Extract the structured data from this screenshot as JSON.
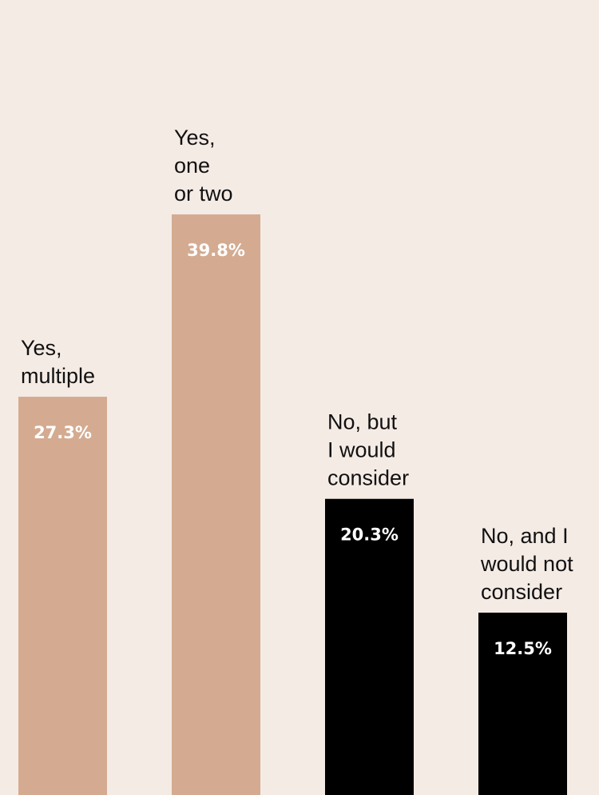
{
  "chart_data": {
    "type": "bar",
    "categories": [
      [
        "Yes,",
        "multiple"
      ],
      [
        "Yes,",
        "one",
        "or two"
      ],
      [
        "No, but",
        "I would",
        "consider"
      ],
      [
        "No, and I",
        "would not",
        "consider"
      ]
    ],
    "values": [
      27.3,
      39.8,
      20.3,
      12.5
    ],
    "value_labels": [
      "27.3%",
      "39.8%",
      "20.3%",
      "12.5%"
    ],
    "bar_colors": [
      "#d4ab91",
      "#d4ab91",
      "#000000",
      "#000000"
    ],
    "title": "",
    "xlabel": "",
    "ylabel": "",
    "ylim": [
      0,
      40
    ],
    "grid": false,
    "legend": "none"
  },
  "colors": {
    "background": "#f5ebe5",
    "text": "#111111",
    "value_text": "#ffffff"
  }
}
